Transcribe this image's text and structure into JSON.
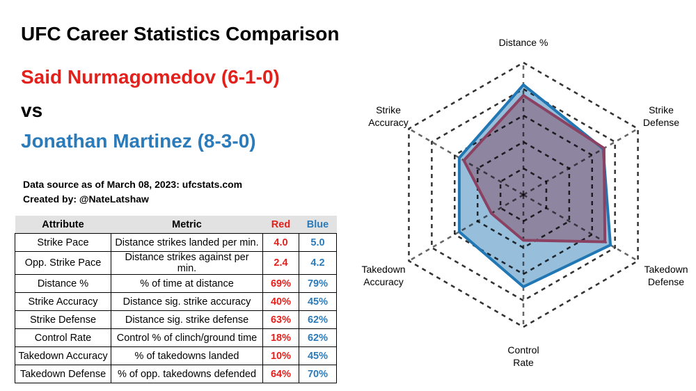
{
  "title": "UFC Career Statistics Comparison",
  "red_fighter": "Said Nurmagomedov (6-1-0)",
  "vs": "vs",
  "blue_fighter": "Jonathan Martinez (8-3-0)",
  "data_source": "Data source as of March 08, 2023: ufcstats.com",
  "created_by": "Created by: @NateLatshaw",
  "colors": {
    "red": "#e3211c",
    "blue": "#2b7bba"
  },
  "table": {
    "headers": [
      "Attribute",
      "Metric",
      "Red",
      "Blue"
    ],
    "rows": [
      [
        "Strike Pace",
        "Distance strikes landed per min.",
        "4.0",
        "5.0"
      ],
      [
        "Opp. Strike Pace",
        "Distance strikes against per min.",
        "2.4",
        "4.2"
      ],
      [
        "Distance %",
        "% of time at distance",
        "69%",
        "79%"
      ],
      [
        "Strike Accuracy",
        "Distance sig. strike accuracy",
        "40%",
        "45%"
      ],
      [
        "Strike Defense",
        "Distance sig. strike defense",
        "63%",
        "62%"
      ],
      [
        "Control Rate",
        "Control % of clinch/ground time",
        "18%",
        "62%"
      ],
      [
        "Takedown Accuracy",
        "% of takedowns landed",
        "10%",
        "45%"
      ],
      [
        "Takedown Defense",
        "% of opp. takedowns defended",
        "64%",
        "70%"
      ]
    ]
  },
  "chart_data": {
    "type": "radar",
    "axes": [
      "Distance %",
      "Strike Defense",
      "Takedown Defense",
      "Control Rate",
      "Takedown Accuracy",
      "Strike Accuracy"
    ],
    "axis_labels": [
      [
        "Distance %"
      ],
      [
        "Strike",
        "Defense"
      ],
      [
        "Takedown",
        "Defense"
      ],
      [
        "Control",
        "Rate"
      ],
      [
        "Takedown",
        "Accuracy"
      ],
      [
        "Strike",
        "Accuracy"
      ]
    ],
    "radial_range": [
      -25,
      100
    ],
    "grid_rings": [
      0,
      25,
      50,
      75,
      100
    ],
    "series": [
      {
        "name": "Blue",
        "values": [
          79,
          62,
          70,
          62,
          45,
          45
        ]
      },
      {
        "name": "Red",
        "values": [
          69,
          63,
          64,
          18,
          10,
          40
        ]
      }
    ]
  }
}
